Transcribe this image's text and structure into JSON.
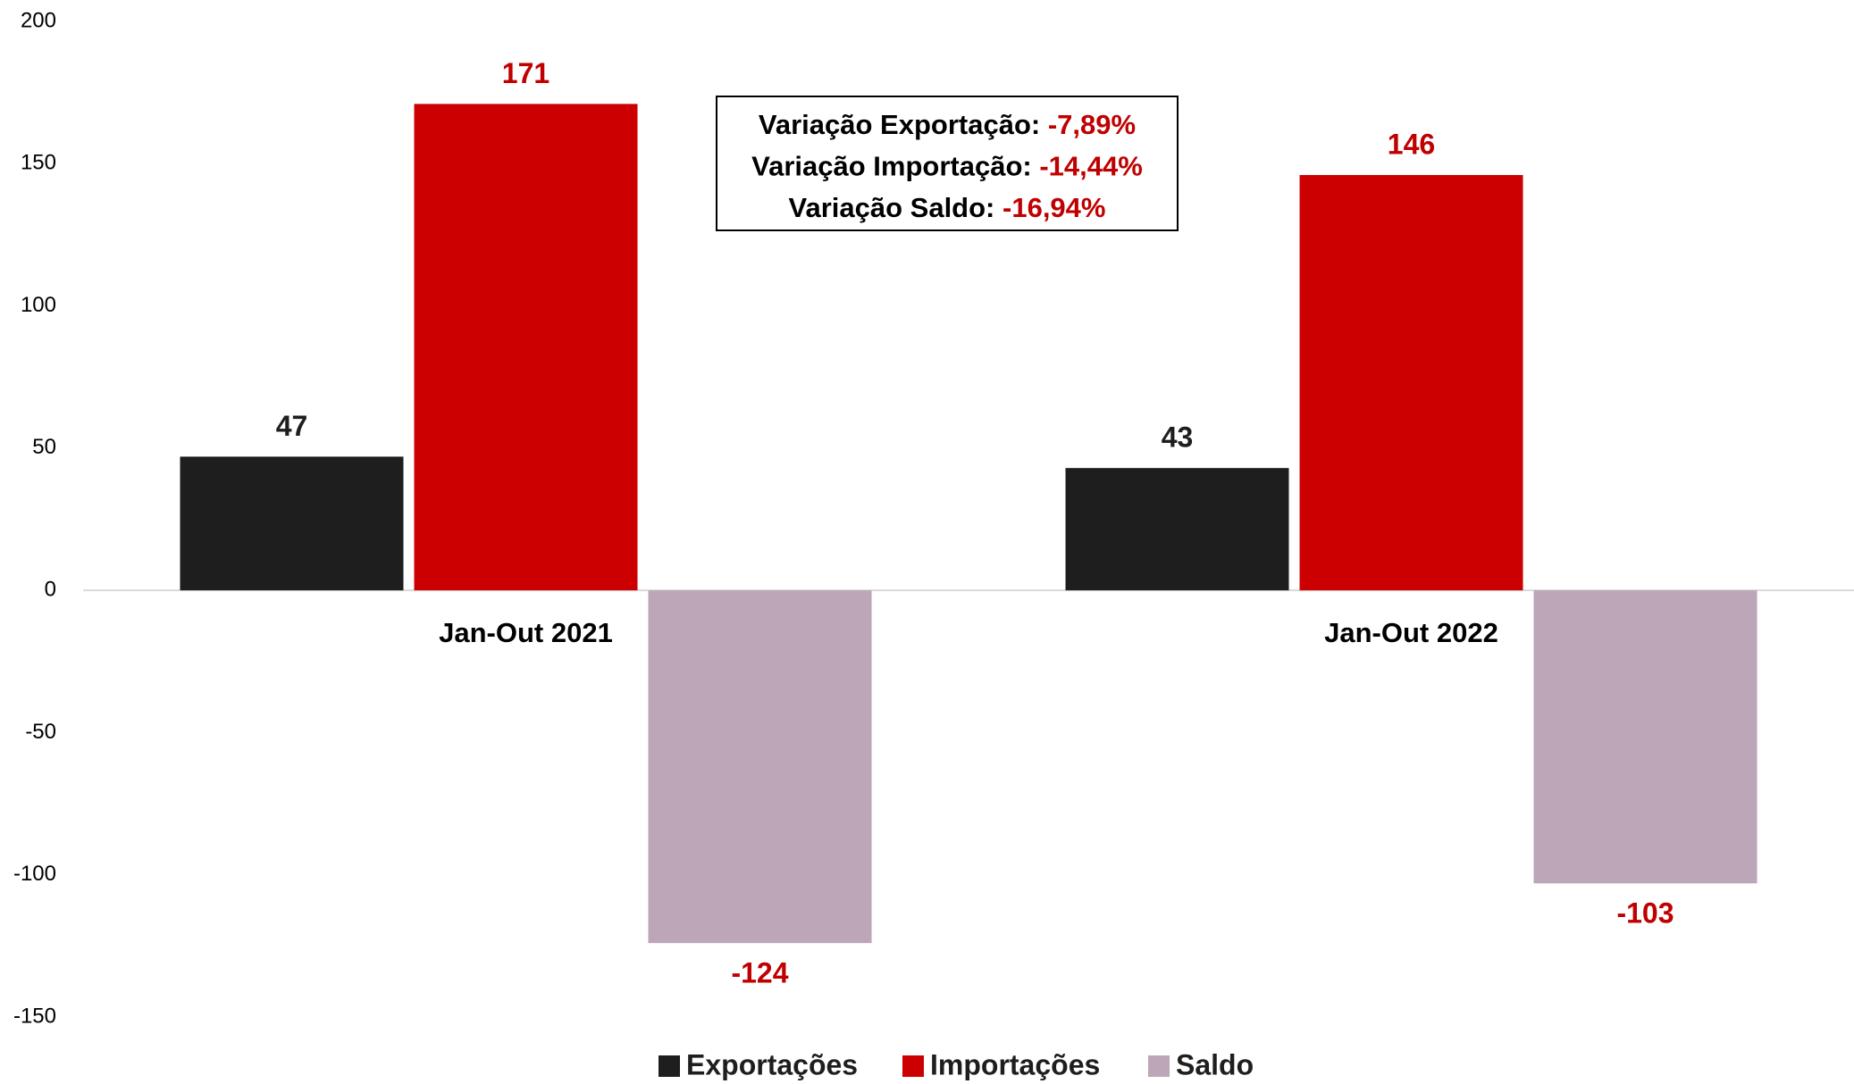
{
  "chart_data": {
    "type": "bar",
    "categories": [
      "Jan-Out 2021",
      "Jan-Out 2022"
    ],
    "series": [
      {
        "name": "Exportações",
        "color": "#1e1e1e",
        "label_color": "#1e1e1e",
        "values": [
          47,
          43
        ]
      },
      {
        "name": "Importações",
        "color": "#cc0000",
        "label_color": "#c00000",
        "values": [
          171,
          146
        ]
      },
      {
        "name": "Saldo",
        "color": "#bca6b8",
        "label_color": "#c00000",
        "values": [
          -124,
          -103
        ]
      }
    ],
    "ylim": [
      -150,
      200
    ],
    "yticks": [
      -150,
      -100,
      -50,
      0,
      50,
      100,
      150,
      200
    ],
    "grid": false,
    "legend": "bottom",
    "annotation": [
      {
        "label": "Variação Exportação:",
        "value": "-7,89%"
      },
      {
        "label": "Variação Importação:",
        "value": "-14,44%"
      },
      {
        "label": "Variação Saldo:",
        "value": "-16,94%"
      }
    ]
  }
}
